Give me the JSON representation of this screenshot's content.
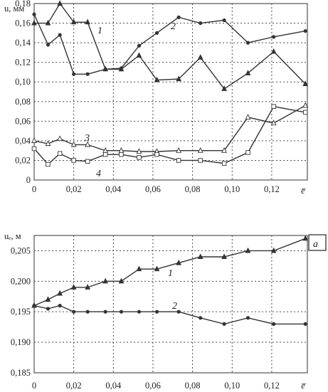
{
  "chart_data": [
    {
      "type": "line",
      "ylabel": "u, мм",
      "xlabel": "e̅",
      "xlim": [
        0,
        0.138
      ],
      "ylim": [
        0,
        0.18
      ],
      "yticks": [
        "0",
        "0,02",
        "0,04",
        "0,06",
        "0,08",
        "0,10",
        "0,12",
        "0,14",
        "0,16",
        "0,18"
      ],
      "xticks": [
        "0",
        "0,02",
        "0,04",
        "0,06",
        "0,08",
        "0,10",
        "0,12"
      ],
      "grid": true,
      "series": [
        {
          "name": "1",
          "marker": "triangle",
          "x": [
            0,
            0.007,
            0.013,
            0.02,
            0.027,
            0.036,
            0.044,
            0.053,
            0.062,
            0.073,
            0.084,
            0.096,
            0.108,
            0.121,
            0.137
          ],
          "y": [
            0.16,
            0.16,
            0.18,
            0.161,
            0.161,
            0.113,
            0.113,
            0.127,
            0.102,
            0.103,
            0.125,
            0.093,
            0.109,
            0.131,
            0.098
          ]
        },
        {
          "name": "2",
          "marker": "dot",
          "x": [
            0,
            0.007,
            0.013,
            0.02,
            0.027,
            0.036,
            0.044,
            0.053,
            0.062,
            0.073,
            0.084,
            0.096,
            0.108,
            0.121,
            0.137
          ],
          "y": [
            0.169,
            0.138,
            0.148,
            0.108,
            0.108,
            0.113,
            0.114,
            0.137,
            0.15,
            0.166,
            0.16,
            0.163,
            0.14,
            0.146,
            0.152
          ]
        },
        {
          "name": "3",
          "marker": "open-triangle",
          "x": [
            0,
            0.007,
            0.013,
            0.02,
            0.027,
            0.036,
            0.044,
            0.053,
            0.062,
            0.073,
            0.084,
            0.096,
            0.108,
            0.121,
            0.137
          ],
          "y": [
            0.04,
            0.037,
            0.042,
            0.036,
            0.036,
            0.03,
            0.03,
            0.029,
            0.029,
            0.03,
            0.03,
            0.03,
            0.064,
            0.058,
            0.076
          ]
        },
        {
          "name": "4",
          "marker": "open-square",
          "x": [
            0,
            0.007,
            0.013,
            0.02,
            0.027,
            0.036,
            0.044,
            0.053,
            0.062,
            0.073,
            0.084,
            0.096,
            0.108,
            0.121,
            0.137
          ],
          "y": [
            0.032,
            0.016,
            0.027,
            0.02,
            0.019,
            0.026,
            0.026,
            0.023,
            0.026,
            0.02,
            0.02,
            0.017,
            0.028,
            0.075,
            0.069
          ]
        }
      ]
    },
    {
      "type": "line",
      "ylabel": "uₑ, м",
      "xlabel": "e̅",
      "panel_label": "a",
      "xlim": [
        0,
        0.138
      ],
      "ylim": [
        0.185,
        0.2075
      ],
      "yticks": [
        "0,185",
        "0,190",
        "0,195",
        "0,200",
        "0,205"
      ],
      "xticks": [
        "0",
        "0,02",
        "0,04",
        "0,06",
        "0,08",
        "0,10",
        "0,12",
        "e̅"
      ],
      "grid": true,
      "series": [
        {
          "name": "1",
          "marker": "triangle",
          "x": [
            0,
            0.007,
            0.013,
            0.02,
            0.027,
            0.036,
            0.044,
            0.053,
            0.062,
            0.073,
            0.084,
            0.096,
            0.108,
            0.121,
            0.137
          ],
          "y": [
            0.196,
            0.197,
            0.198,
            0.199,
            0.199,
            0.2,
            0.2,
            0.202,
            0.202,
            0.203,
            0.204,
            0.204,
            0.205,
            0.205,
            0.207
          ]
        },
        {
          "name": "2",
          "marker": "dot",
          "x": [
            0,
            0.007,
            0.013,
            0.02,
            0.027,
            0.036,
            0.044,
            0.053,
            0.062,
            0.073,
            0.084,
            0.096,
            0.108,
            0.121,
            0.137
          ],
          "y": [
            0.196,
            0.1955,
            0.196,
            0.195,
            0.195,
            0.195,
            0.195,
            0.195,
            0.195,
            0.195,
            0.194,
            0.193,
            0.194,
            0.193,
            0.193
          ]
        }
      ]
    }
  ]
}
